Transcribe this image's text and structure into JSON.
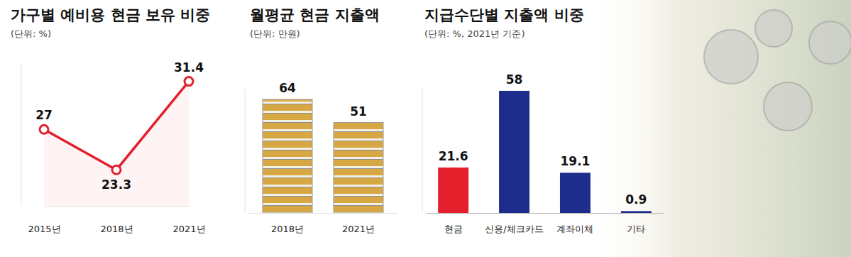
{
  "chart_data": [
    {
      "type": "line",
      "title": "가구별 예비용 현금 보유 비중",
      "subtitle": "(단위: %)",
      "categories": [
        "2015년",
        "2018년",
        "2021년"
      ],
      "values": [
        27,
        23.3,
        31.4
      ],
      "color": "#e3202b",
      "marker": "circle",
      "ylim": [
        20,
        33
      ],
      "data_labels": true,
      "tick_labels": "x"
    },
    {
      "type": "bar",
      "title": "월평균 현금 지출액",
      "subtitle": "(단위: 만원)",
      "categories": [
        "2018년",
        "2021년"
      ],
      "values": [
        64,
        51
      ],
      "color": "#d6a742",
      "ylim": [
        0,
        70
      ],
      "data_labels": true,
      "tick_labels": "x"
    },
    {
      "type": "bar",
      "title": "지급수단별 지출액 비중",
      "subtitle": "(단위: %, 2021년 기준)",
      "categories": [
        "현금",
        "신용/체크카드",
        "계좌이체",
        "기타"
      ],
      "values": [
        21.6,
        58,
        19.1,
        0.9
      ],
      "colors": [
        "#e3202b",
        "#1e2d8c",
        "#1e2d8c",
        "#1e2d8c"
      ],
      "ylim": [
        0,
        60
      ],
      "data_labels": true,
      "tick_labels": "x"
    }
  ]
}
